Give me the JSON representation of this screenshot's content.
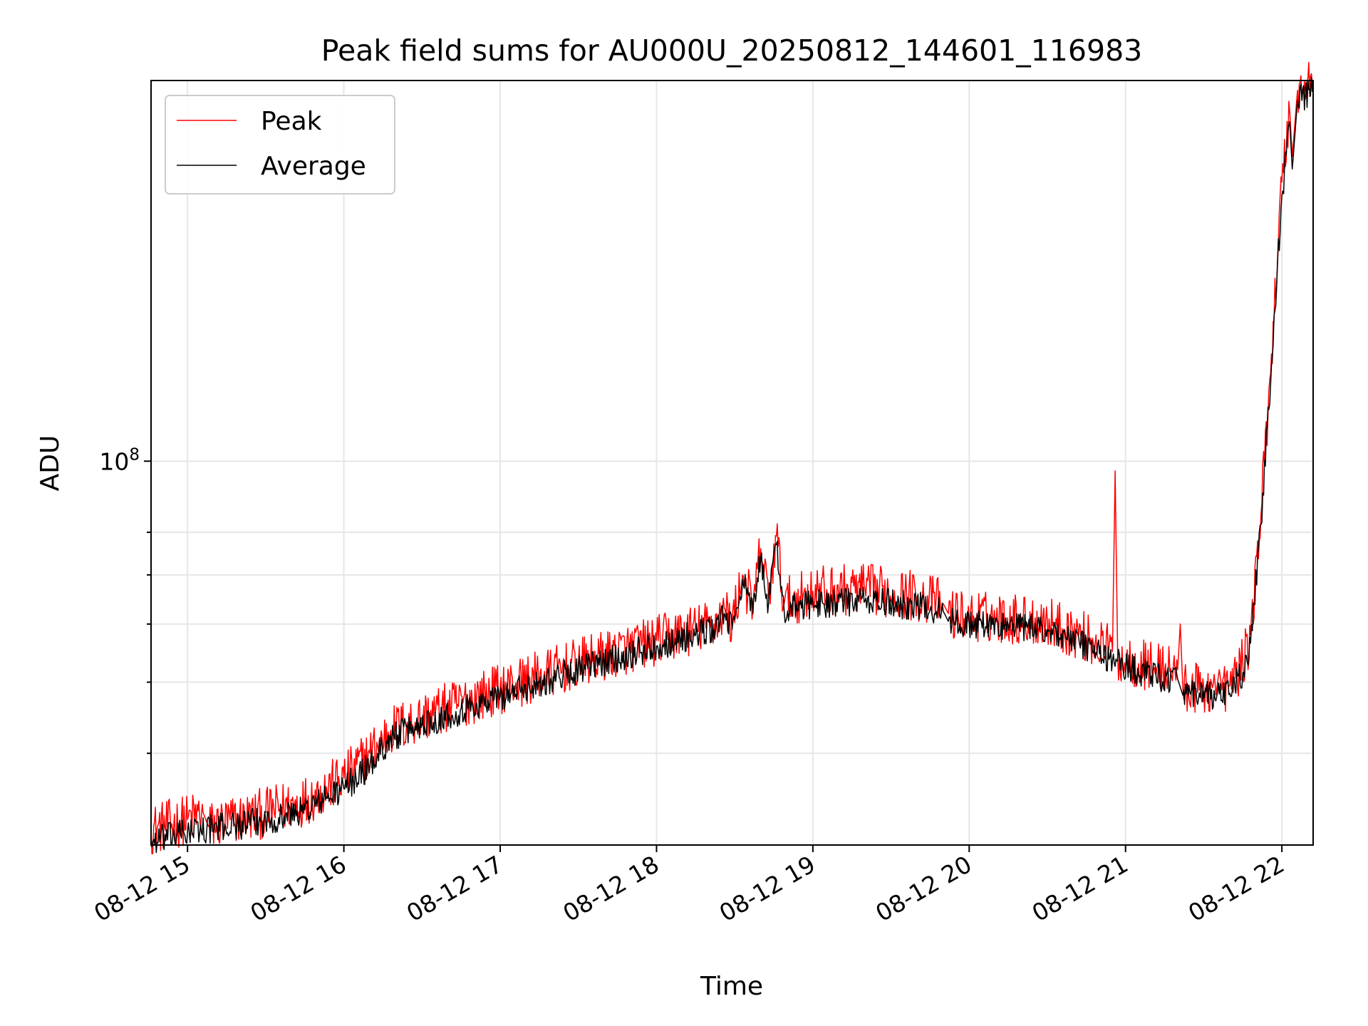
{
  "chart_data": {
    "type": "line",
    "title": "Peak field sums for AU000U_20250812_144601_116983",
    "xlabel": "Time",
    "ylabel": "ADU",
    "yscale": "log",
    "xlim": [
      "2025-08-12 14:46",
      "2025-08-12 22:12"
    ],
    "ylim": [
      30000000,
      330000000
    ],
    "grid": true,
    "legend_position": "top-left",
    "x_ticks": [
      {
        "label": "08-12 15",
        "time": "2025-08-12 15:00"
      },
      {
        "label": "08-12 16",
        "time": "2025-08-12 16:00"
      },
      {
        "label": "08-12 17",
        "time": "2025-08-12 17:00"
      },
      {
        "label": "08-12 18",
        "time": "2025-08-12 18:00"
      },
      {
        "label": "08-12 19",
        "time": "2025-08-12 19:00"
      },
      {
        "label": "08-12 20",
        "time": "2025-08-12 20:00"
      },
      {
        "label": "08-12 21",
        "time": "2025-08-12 21:00"
      },
      {
        "label": "08-12 22",
        "time": "2025-08-12 22:00"
      }
    ],
    "y_major_ticks": [
      {
        "label_base": "10",
        "label_exp": "8",
        "value": 100000000
      }
    ],
    "y_minor_ticks": [
      40000000,
      50000000,
      60000000,
      70000000,
      80000000
    ],
    "series": [
      {
        "name": "Peak",
        "color": "#ff0000",
        "noise": 0.035,
        "points": [
          [
            "2025-08-12 14:46",
            31500000
          ],
          [
            "2025-08-12 15:00",
            32500000
          ],
          [
            "2025-08-12 15:06",
            33200000
          ],
          [
            "2025-08-12 15:08",
            31800000
          ],
          [
            "2025-08-12 15:30",
            33200000
          ],
          [
            "2025-08-12 15:45",
            34500000
          ],
          [
            "2025-08-12 16:00",
            37000000
          ],
          [
            "2025-08-12 16:10",
            40000000
          ],
          [
            "2025-08-12 16:18",
            43000000
          ],
          [
            "2025-08-12 16:30",
            44800000
          ],
          [
            "2025-08-12 17:00",
            49000000
          ],
          [
            "2025-08-12 17:30",
            53000000
          ],
          [
            "2025-08-12 18:00",
            57000000
          ],
          [
            "2025-08-12 18:15",
            59000000
          ],
          [
            "2025-08-12 18:22",
            60000000
          ],
          [
            "2025-08-12 18:26",
            63000000
          ],
          [
            "2025-08-12 18:29",
            60000000
          ],
          [
            "2025-08-12 18:33",
            70000000
          ],
          [
            "2025-08-12 18:37",
            63000000
          ],
          [
            "2025-08-12 18:40",
            76000000
          ],
          [
            "2025-08-12 18:43",
            65000000
          ],
          [
            "2025-08-12 18:46",
            79000000
          ],
          [
            "2025-08-12 18:49",
            64000000
          ],
          [
            "2025-08-12 19:00",
            66500000
          ],
          [
            "2025-08-12 19:20",
            67000000
          ],
          [
            "2025-08-12 19:40",
            65500000
          ],
          [
            "2025-08-12 19:50",
            64000000
          ],
          [
            "2025-08-12 19:52",
            62000000
          ],
          [
            "2025-08-12 20:00",
            61500000
          ],
          [
            "2025-08-12 20:20",
            61000000
          ],
          [
            "2025-08-12 20:30",
            60500000
          ],
          [
            "2025-08-12 20:45",
            57500000
          ],
          [
            "2025-08-12 20:55",
            55000000
          ],
          [
            "2025-08-12 20:56",
            97000000
          ],
          [
            "2025-08-12 20:57",
            54000000
          ],
          [
            "2025-08-12 21:10",
            52500000
          ],
          [
            "2025-08-12 21:20",
            52000000
          ],
          [
            "2025-08-12 21:21",
            60000000
          ],
          [
            "2025-08-12 21:22",
            49000000
          ],
          [
            "2025-08-12 21:35",
            49000000
          ],
          [
            "2025-08-12 21:36",
            52000000
          ],
          [
            "2025-08-12 21:37",
            48800000
          ],
          [
            "2025-08-12 21:40",
            49500000
          ],
          [
            "2025-08-12 21:45",
            53000000
          ],
          [
            "2025-08-12 21:48",
            58000000
          ],
          [
            "2025-08-12 21:52",
            85000000
          ],
          [
            "2025-08-12 21:56",
            140000000
          ],
          [
            "2025-08-12 22:00",
            240000000
          ],
          [
            "2025-08-12 22:03",
            300000000
          ],
          [
            "2025-08-12 22:04",
            260000000
          ],
          [
            "2025-08-12 22:06",
            320000000
          ],
          [
            "2025-08-12 22:12",
            330000000
          ]
        ]
      },
      {
        "name": "Average",
        "color": "#000000",
        "noise": 0.02,
        "points": [
          [
            "2025-08-12 14:46",
            30300000
          ],
          [
            "2025-08-12 15:00",
            31300000
          ],
          [
            "2025-08-12 15:30",
            32300000
          ],
          [
            "2025-08-12 15:45",
            33500000
          ],
          [
            "2025-08-12 16:00",
            35800000
          ],
          [
            "2025-08-12 16:10",
            38500000
          ],
          [
            "2025-08-12 16:18",
            42000000
          ],
          [
            "2025-08-12 16:30",
            43800000
          ],
          [
            "2025-08-12 17:00",
            47800000
          ],
          [
            "2025-08-12 17:30",
            52000000
          ],
          [
            "2025-08-12 18:00",
            56000000
          ],
          [
            "2025-08-12 18:15",
            58000000
          ],
          [
            "2025-08-12 18:22",
            59000000
          ],
          [
            "2025-08-12 18:26",
            62000000
          ],
          [
            "2025-08-12 18:29",
            59000000
          ],
          [
            "2025-08-12 18:33",
            69000000
          ],
          [
            "2025-08-12 18:37",
            62000000
          ],
          [
            "2025-08-12 18:40",
            74000000
          ],
          [
            "2025-08-12 18:43",
            64000000
          ],
          [
            "2025-08-12 18:46",
            77000000
          ],
          [
            "2025-08-12 18:49",
            62500000
          ],
          [
            "2025-08-12 19:00",
            64000000
          ],
          [
            "2025-08-12 19:20",
            64500000
          ],
          [
            "2025-08-12 19:40",
            63500000
          ],
          [
            "2025-08-12 19:50",
            62500000
          ],
          [
            "2025-08-12 19:52",
            60500000
          ],
          [
            "2025-08-12 20:00",
            60000000
          ],
          [
            "2025-08-12 20:20",
            59500000
          ],
          [
            "2025-08-12 20:30",
            59000000
          ],
          [
            "2025-08-12 20:45",
            56000000
          ],
          [
            "2025-08-12 20:55",
            53500000
          ],
          [
            "2025-08-12 21:10",
            51000000
          ],
          [
            "2025-08-12 21:20",
            50500000
          ],
          [
            "2025-08-12 21:22",
            48000000
          ],
          [
            "2025-08-12 21:35",
            47800000
          ],
          [
            "2025-08-12 21:40",
            48300000
          ],
          [
            "2025-08-12 21:45",
            51500000
          ],
          [
            "2025-08-12 21:48",
            56500000
          ],
          [
            "2025-08-12 21:52",
            82000000
          ],
          [
            "2025-08-12 21:56",
            135000000
          ],
          [
            "2025-08-12 22:00",
            230000000
          ],
          [
            "2025-08-12 22:03",
            290000000
          ],
          [
            "2025-08-12 22:04",
            250000000
          ],
          [
            "2025-08-12 22:06",
            310000000
          ],
          [
            "2025-08-12 22:12",
            320000000
          ]
        ]
      }
    ]
  }
}
